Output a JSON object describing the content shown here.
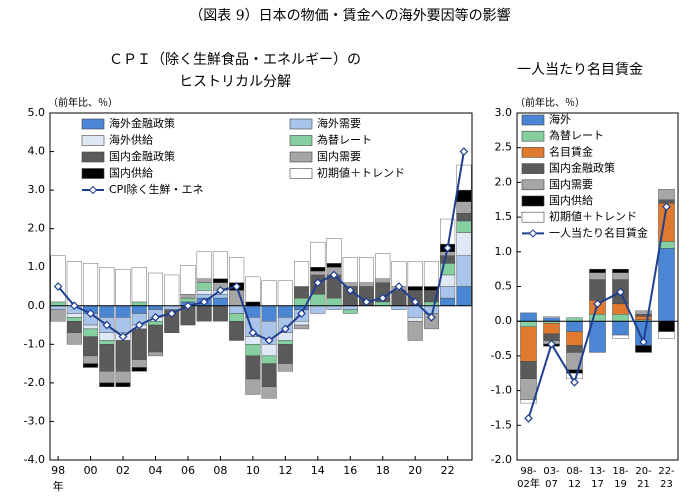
{
  "page_title": "（図表 9）日本の物価・賃金への海外要因等の影響",
  "chart_data": [
    {
      "type": "bar",
      "stacked": true,
      "title": [
        "ＣＰＩ（除く生鮮食品・エネルギー）の",
        "ヒストリカル分解"
      ],
      "unit": "（前年比、％）",
      "x_unit": "年",
      "categories": [
        "98",
        null,
        "00",
        null,
        "02",
        null,
        "04",
        null,
        "06",
        null,
        "08",
        null,
        "10",
        null,
        "12",
        null,
        "14",
        null,
        "16",
        null,
        "18",
        null,
        "20",
        null,
        "22",
        null
      ],
      "ylim": [
        -4,
        5
      ],
      "yticks": [
        {
          "value": -4,
          "label": "-4.0"
        },
        {
          "value": -3,
          "label": "-3.0"
        },
        {
          "value": -2,
          "label": "-2.0"
        },
        {
          "value": -1,
          "label": "-1.0"
        },
        {
          "value": 0,
          "label": "0.0"
        },
        {
          "value": 1,
          "label": "1.0"
        },
        {
          "value": 2,
          "label": "2.0"
        },
        {
          "value": 3,
          "label": "3.0"
        },
        {
          "value": 4,
          "label": "4.0"
        },
        {
          "value": 5,
          "label": "5.0"
        }
      ],
      "series": [
        {
          "name": "海外金融政策",
          "color": "#4a86d4",
          "values": [
            0,
            0,
            -0.2,
            -0.3,
            -0.3,
            -0.2,
            -0.1,
            0,
            0.1,
            0.2,
            0.2,
            0,
            -0.3,
            -0.4,
            -0.3,
            -0.1,
            0,
            0,
            0,
            0,
            0,
            0,
            0,
            0,
            0.2,
            0.5
          ]
        },
        {
          "name": "海外需要",
          "color": "#a9c4ea",
          "values": [
            -0.1,
            -0.2,
            -0.3,
            -0.4,
            -0.4,
            -0.3,
            -0.2,
            -0.1,
            0,
            0.1,
            0.1,
            -0.2,
            -0.5,
            -0.6,
            -0.4,
            -0.3,
            -0.2,
            -0.1,
            -0.1,
            0,
            0,
            -0.1,
            -0.3,
            -0.2,
            0.3,
            0.8
          ]
        },
        {
          "name": "海外供給",
          "color": "#dfe9f6",
          "values": [
            0,
            -0.1,
            -0.1,
            -0.2,
            -0.2,
            -0.1,
            -0.1,
            0,
            0,
            0.1,
            0.1,
            0,
            -0.2,
            -0.3,
            -0.2,
            -0.1,
            0,
            0,
            0,
            0,
            0,
            0,
            -0.1,
            0,
            0.3,
            0.6
          ]
        },
        {
          "name": "為替レート",
          "color": "#86cfa0",
          "values": [
            0.1,
            -0.1,
            -0.2,
            -0.1,
            0,
            0.1,
            -0.1,
            0,
            0.1,
            0.2,
            0,
            -0.2,
            -0.3,
            -0.2,
            -0.1,
            0.2,
            0.3,
            0.2,
            -0.1,
            0,
            0.1,
            0,
            0,
            0.1,
            0.3,
            0.3
          ]
        },
        {
          "name": "国内金融政策",
          "color": "#5a5a5a",
          "values": [
            0,
            -0.3,
            -0.5,
            -0.7,
            -0.8,
            -0.8,
            -0.7,
            -0.6,
            -0.5,
            -0.4,
            -0.4,
            -0.5,
            -0.6,
            -0.6,
            -0.5,
            0.3,
            0.5,
            0.6,
            0.5,
            0.5,
            0.5,
            0.4,
            0.4,
            0.3,
            0.2,
            0.2
          ]
        },
        {
          "name": "国内需要",
          "color": "#a6a6a6",
          "values": [
            -0.3,
            -0.3,
            -0.2,
            -0.3,
            -0.3,
            -0.2,
            -0.1,
            0,
            0.1,
            0.1,
            0.2,
            0.4,
            -0.4,
            -0.3,
            -0.2,
            -0.1,
            0.1,
            0.2,
            0.1,
            0.1,
            0.1,
            0.1,
            -0.5,
            -0.4,
            0.1,
            0.3
          ]
        },
        {
          "name": "国内供給",
          "color": "#000000",
          "values": [
            0,
            0,
            -0.1,
            -0.1,
            -0.1,
            -0.1,
            0,
            0,
            0,
            0,
            0.1,
            0.2,
            0.1,
            0,
            0,
            0,
            0.1,
            0.1,
            0,
            0,
            0,
            0,
            0.1,
            0.1,
            0.2,
            0.3
          ]
        },
        {
          "name": "初期値＋トレンド",
          "color": "#ffffff",
          "values": [
            1.2,
            1.15,
            1.1,
            1.0,
            0.95,
            0.9,
            0.85,
            0.8,
            0.75,
            0.7,
            0.7,
            0.65,
            0.65,
            0.65,
            0.65,
            0.65,
            0.65,
            0.65,
            0.65,
            0.65,
            0.65,
            0.65,
            0.65,
            0.65,
            0.65,
            0.65
          ]
        }
      ],
      "line": {
        "name": "CPI除く生鮮・エネ",
        "color": "#1f3f8f",
        "values": [
          0.5,
          0.0,
          -0.2,
          -0.5,
          -0.8,
          -0.5,
          -0.3,
          -0.2,
          0.0,
          0.1,
          0.4,
          0.5,
          -0.7,
          -0.9,
          -0.6,
          -0.2,
          0.6,
          0.8,
          0.4,
          0.1,
          0.2,
          0.5,
          0.1,
          -0.3,
          1.5,
          4.0
        ]
      }
    },
    {
      "type": "bar",
      "stacked": true,
      "title": [
        "一人当たり名目賃金"
      ],
      "unit": "（前年比、％）",
      "categories": [
        [
          "98-",
          "02年"
        ],
        [
          "03-",
          "07"
        ],
        [
          "08-",
          "12"
        ],
        [
          "13-",
          "17"
        ],
        [
          "18-",
          "19"
        ],
        [
          "20-",
          "21"
        ],
        [
          "22-",
          "23"
        ]
      ],
      "ylim": [
        -2,
        3
      ],
      "yticks": [
        {
          "value": -2,
          "label": "-2.0"
        },
        {
          "value": -1.5,
          "label": "-1.5"
        },
        {
          "value": -1,
          "label": "-1.0"
        },
        {
          "value": -0.5,
          "label": "-0.5"
        },
        {
          "value": 0,
          "label": "0.0"
        },
        {
          "value": 0.5,
          "label": "0.5"
        },
        {
          "value": 1,
          "label": "1.0"
        },
        {
          "value": 1.5,
          "label": "1.5"
        },
        {
          "value": 2,
          "label": "2.0"
        },
        {
          "value": 2.5,
          "label": "2.5"
        },
        {
          "value": 3,
          "label": "3.0"
        }
      ],
      "series": [
        {
          "name": "海外",
          "color": "#4a86d4",
          "values": [
            0.12,
            0.05,
            -0.15,
            -0.45,
            -0.2,
            -0.35,
            1.05
          ]
        },
        {
          "name": "為替レート",
          "color": "#86cfa0",
          "values": [
            -0.08,
            -0.03,
            0.05,
            0.1,
            0.1,
            0.02,
            0.1
          ]
        },
        {
          "name": "名目賃金",
          "color": "#e07a2e",
          "values": [
            -0.5,
            -0.15,
            -0.2,
            0.2,
            0.15,
            0.05,
            0.55
          ]
        },
        {
          "name": "国内金融政策",
          "color": "#5a5a5a",
          "values": [
            -0.25,
            -0.1,
            -0.1,
            0.3,
            0.35,
            0.03,
            0.05
          ]
        },
        {
          "name": "国内需要",
          "color": "#a6a6a6",
          "values": [
            -0.3,
            -0.05,
            -0.25,
            0.1,
            0.1,
            0.05,
            0.15
          ]
        },
        {
          "name": "国内供給",
          "color": "#000000",
          "values": [
            0,
            -0.03,
            -0.05,
            0.05,
            0.05,
            -0.1,
            -0.15
          ]
        },
        {
          "name": "初期値＋トレンド",
          "color": "#ffffff",
          "values": [
            -0.05,
            0.02,
            -0.08,
            0,
            -0.05,
            0,
            -0.1
          ]
        }
      ],
      "line": {
        "name": "一人当たり名目賃金",
        "color": "#1f3f8f",
        "values": [
          -1.4,
          -0.33,
          -0.88,
          0.25,
          0.42,
          -0.3,
          1.65
        ]
      }
    }
  ]
}
